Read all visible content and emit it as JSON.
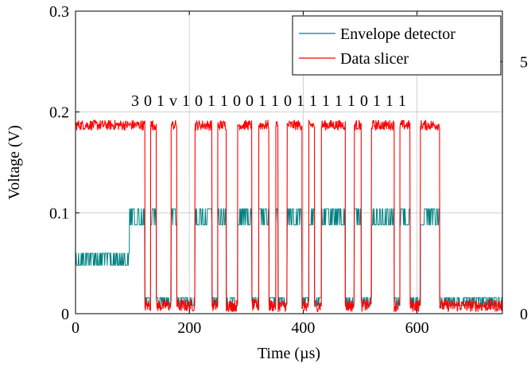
{
  "chart_data": {
    "type": "line",
    "xlabel": "Time (µs)",
    "ylabel": "Voltage (V)",
    "xlim": [
      0,
      750
    ],
    "ylim": [
      0,
      0.3
    ],
    "y2lim": [
      0,
      6
    ],
    "grid": true,
    "legend_position": "top-right",
    "x_ticks": [
      {
        "value": 0,
        "label": "0"
      },
      {
        "value": 200,
        "label": "200"
      },
      {
        "value": 400,
        "label": "400"
      },
      {
        "value": 600,
        "label": "600"
      }
    ],
    "y_ticks": [
      {
        "value": 0,
        "label": "0"
      },
      {
        "value": 0.1,
        "label": "0.1"
      },
      {
        "value": 0.2,
        "label": "0.2"
      },
      {
        "value": 0.3,
        "label": "0.3"
      }
    ],
    "y2_ticks": [
      {
        "value": 0,
        "label": "0"
      },
      {
        "value": 5,
        "label": "5"
      }
    ],
    "annotation": "3 0 1 v 1 0 1 1 0 0 1 1 0 1 1 1 1 1 0 1 1 1",
    "series": [
      {
        "name": "Envelope detector",
        "color": "#008080",
        "axis": "left",
        "segments": [
          {
            "x0": 0,
            "x1": 95,
            "high": 0.06,
            "low": 0.048
          },
          {
            "x0": 95,
            "x1": 122,
            "high": 0.104,
            "low": 0.088
          },
          {
            "x0": 122,
            "x1": 132,
            "high": 0.016,
            "low": 0.008
          },
          {
            "x0": 132,
            "x1": 142,
            "high": 0.104,
            "low": 0.088
          },
          {
            "x0": 142,
            "x1": 168,
            "high": 0.016,
            "low": 0.008
          },
          {
            "x0": 168,
            "x1": 178,
            "high": 0.104,
            "low": 0.088
          },
          {
            "x0": 178,
            "x1": 210,
            "high": 0.016,
            "low": 0.008
          },
          {
            "x0": 210,
            "x1": 240,
            "high": 0.104,
            "low": 0.088
          },
          {
            "x0": 240,
            "x1": 250,
            "high": 0.016,
            "low": 0.008
          },
          {
            "x0": 250,
            "x1": 265,
            "high": 0.104,
            "low": 0.088
          },
          {
            "x0": 265,
            "x1": 285,
            "high": 0.016,
            "low": 0.008
          },
          {
            "x0": 285,
            "x1": 310,
            "high": 0.104,
            "low": 0.088
          },
          {
            "x0": 310,
            "x1": 322,
            "high": 0.016,
            "low": 0.008
          },
          {
            "x0": 322,
            "x1": 340,
            "high": 0.104,
            "low": 0.088
          },
          {
            "x0": 340,
            "x1": 352,
            "high": 0.016,
            "low": 0.008
          },
          {
            "x0": 352,
            "x1": 356,
            "high": 0.104,
            "low": 0.088
          },
          {
            "x0": 356,
            "x1": 372,
            "high": 0.016,
            "low": 0.008
          },
          {
            "x0": 372,
            "x1": 398,
            "high": 0.104,
            "low": 0.088
          },
          {
            "x0": 398,
            "x1": 410,
            "high": 0.016,
            "low": 0.008
          },
          {
            "x0": 410,
            "x1": 420,
            "high": 0.104,
            "low": 0.088
          },
          {
            "x0": 420,
            "x1": 432,
            "high": 0.016,
            "low": 0.008
          },
          {
            "x0": 432,
            "x1": 474,
            "high": 0.104,
            "low": 0.088
          },
          {
            "x0": 474,
            "x1": 490,
            "high": 0.016,
            "low": 0.008
          },
          {
            "x0": 490,
            "x1": 502,
            "high": 0.104,
            "low": 0.088
          },
          {
            "x0": 502,
            "x1": 520,
            "high": 0.016,
            "low": 0.008
          },
          {
            "x0": 520,
            "x1": 560,
            "high": 0.104,
            "low": 0.088
          },
          {
            "x0": 560,
            "x1": 570,
            "high": 0.016,
            "low": 0.008
          },
          {
            "x0": 570,
            "x1": 588,
            "high": 0.104,
            "low": 0.088
          },
          {
            "x0": 588,
            "x1": 606,
            "high": 0.016,
            "low": 0.008
          },
          {
            "x0": 606,
            "x1": 640,
            "high": 0.104,
            "low": 0.088
          },
          {
            "x0": 640,
            "x1": 750,
            "high": 0.016,
            "low": 0.008
          }
        ]
      },
      {
        "name": "Data slicer",
        "color": "#ff0000",
        "axis": "left",
        "segments": [
          {
            "x0": 0,
            "x1": 122,
            "high": 0.192,
            "low": 0.182
          },
          {
            "x0": 122,
            "x1": 132,
            "high": 0.014,
            "low": 0.002
          },
          {
            "x0": 132,
            "x1": 142,
            "high": 0.192,
            "low": 0.182
          },
          {
            "x0": 142,
            "x1": 168,
            "high": 0.014,
            "low": 0.002
          },
          {
            "x0": 168,
            "x1": 178,
            "high": 0.192,
            "low": 0.182
          },
          {
            "x0": 178,
            "x1": 210,
            "high": 0.014,
            "low": 0.002
          },
          {
            "x0": 210,
            "x1": 240,
            "high": 0.192,
            "low": 0.182
          },
          {
            "x0": 240,
            "x1": 250,
            "high": 0.014,
            "low": 0.002
          },
          {
            "x0": 250,
            "x1": 265,
            "high": 0.192,
            "low": 0.182
          },
          {
            "x0": 265,
            "x1": 285,
            "high": 0.014,
            "low": 0.002
          },
          {
            "x0": 285,
            "x1": 310,
            "high": 0.192,
            "low": 0.182
          },
          {
            "x0": 310,
            "x1": 322,
            "high": 0.014,
            "low": 0.002
          },
          {
            "x0": 322,
            "x1": 340,
            "high": 0.192,
            "low": 0.182
          },
          {
            "x0": 340,
            "x1": 352,
            "high": 0.014,
            "low": 0.002
          },
          {
            "x0": 352,
            "x1": 356,
            "high": 0.192,
            "low": 0.182
          },
          {
            "x0": 356,
            "x1": 372,
            "high": 0.014,
            "low": 0.002
          },
          {
            "x0": 372,
            "x1": 398,
            "high": 0.192,
            "low": 0.182
          },
          {
            "x0": 398,
            "x1": 410,
            "high": 0.014,
            "low": 0.002
          },
          {
            "x0": 410,
            "x1": 420,
            "high": 0.192,
            "low": 0.182
          },
          {
            "x0": 420,
            "x1": 432,
            "high": 0.014,
            "low": 0.002
          },
          {
            "x0": 432,
            "x1": 474,
            "high": 0.192,
            "low": 0.182
          },
          {
            "x0": 474,
            "x1": 490,
            "high": 0.014,
            "low": 0.002
          },
          {
            "x0": 490,
            "x1": 502,
            "high": 0.192,
            "low": 0.182
          },
          {
            "x0": 502,
            "x1": 520,
            "high": 0.014,
            "low": 0.002
          },
          {
            "x0": 520,
            "x1": 560,
            "high": 0.192,
            "low": 0.182
          },
          {
            "x0": 560,
            "x1": 570,
            "high": 0.014,
            "low": 0.002
          },
          {
            "x0": 570,
            "x1": 588,
            "high": 0.192,
            "low": 0.182
          },
          {
            "x0": 588,
            "x1": 606,
            "high": 0.014,
            "low": 0.002
          },
          {
            "x0": 606,
            "x1": 640,
            "high": 0.192,
            "low": 0.182
          },
          {
            "x0": 640,
            "x1": 750,
            "high": 0.014,
            "low": 0.002
          }
        ]
      }
    ]
  }
}
